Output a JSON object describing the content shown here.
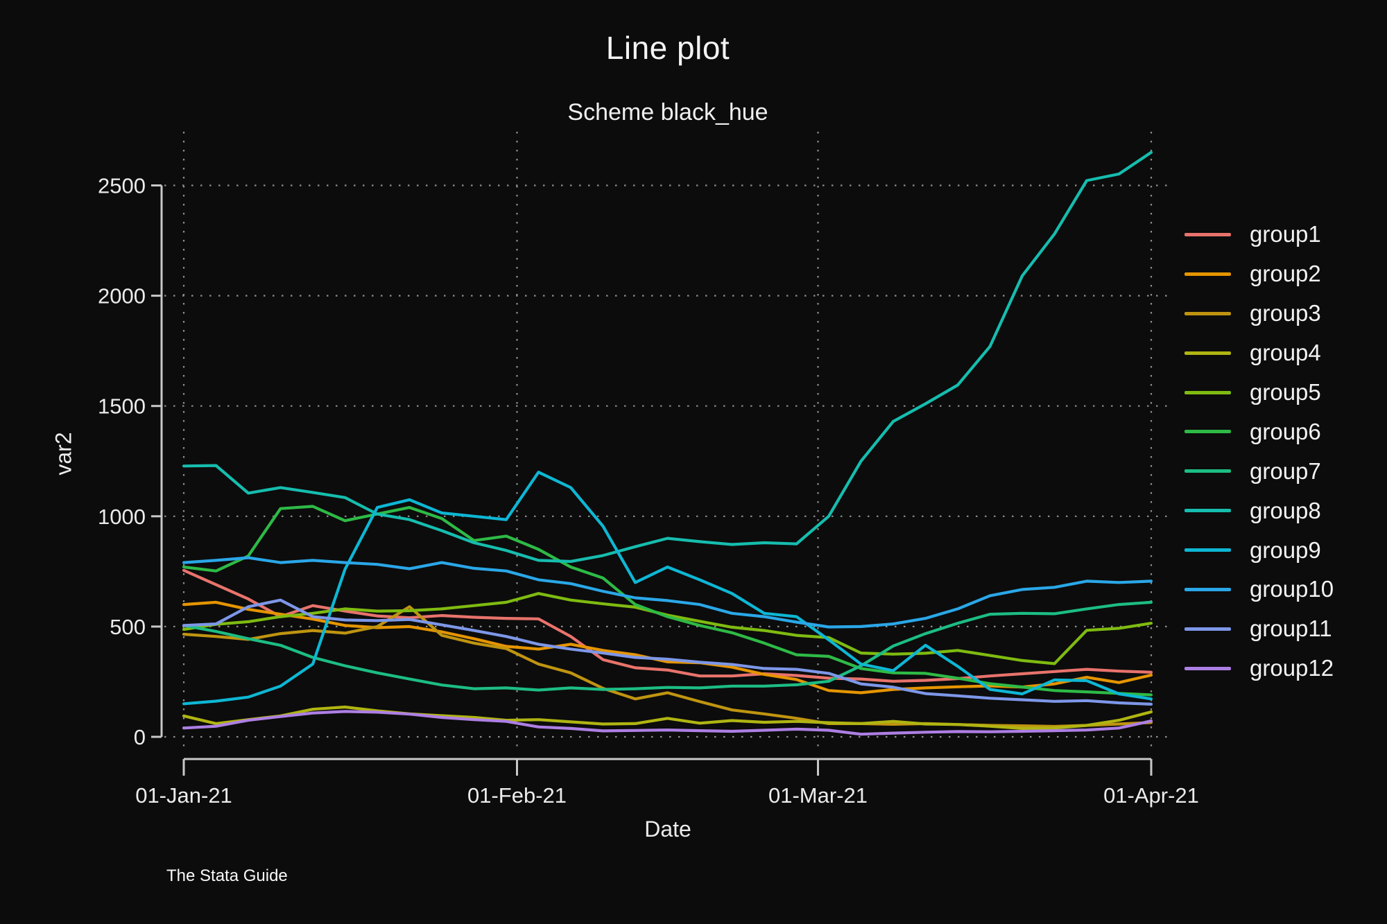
{
  "chart": {
    "title": "Line plot",
    "subtitle": "Scheme black_hue",
    "xlabel": "Date",
    "ylabel": "var2",
    "attribution": "The Stata Guide"
  },
  "chart_data": {
    "type": "line",
    "title": "Line plot",
    "subtitle": "Scheme black_hue",
    "xlabel": "Date",
    "ylabel": "var2",
    "attribution": "The Stata Guide",
    "x_unit": "days since 01-Jan-21",
    "x_step_days": 3,
    "x_ticks": [
      {
        "day": 0,
        "label": "01-Jan-21"
      },
      {
        "day": 31,
        "label": "01-Feb-21"
      },
      {
        "day": 59,
        "label": "01-Mar-21"
      },
      {
        "day": 90,
        "label": "01-Apr-21"
      }
    ],
    "y_ticks": [
      0,
      500,
      1000,
      1500,
      2000,
      2500
    ],
    "ylim": [
      0,
      2700
    ],
    "grid": true,
    "grid_style": "dotted",
    "legend_position": "right",
    "background_color": "#0c0c0c",
    "axis_color": "#c8c8c8",
    "grid_color": "#8f8f8f",
    "text_color": "#ececec",
    "series": [
      {
        "name": "group1",
        "color": "#e8736c",
        "values": [
          755,
          690,
          625,
          545,
          595,
          570,
          548,
          540,
          550,
          542,
          537,
          535,
          455,
          350,
          313,
          303,
          276,
          276,
          286,
          278,
          266,
          262,
          252,
          256,
          264,
          276,
          286,
          296,
          306,
          298,
          293
        ]
      },
      {
        "name": "group2",
        "color": "#e59500",
        "values": [
          600,
          610,
          578,
          556,
          534,
          505,
          495,
          500,
          476,
          445,
          410,
          398,
          420,
          392,
          372,
          340,
          336,
          316,
          283,
          260,
          210,
          200,
          215,
          222,
          227,
          231,
          226,
          240,
          270,
          246,
          280
        ]
      },
      {
        "name": "group3",
        "color": "#bf9410",
        "values": [
          465,
          455,
          442,
          468,
          482,
          470,
          500,
          590,
          460,
          425,
          400,
          330,
          290,
          220,
          172,
          200,
          160,
          122,
          104,
          84,
          60,
          60,
          57,
          60,
          56,
          52,
          50,
          47,
          52,
          58,
          65
        ]
      },
      {
        "name": "group4",
        "color": "#b0b512",
        "values": [
          95,
          60,
          78,
          95,
          125,
          135,
          118,
          104,
          96,
          88,
          75,
          78,
          68,
          58,
          60,
          84,
          62,
          74,
          66,
          70,
          64,
          60,
          70,
          58,
          56,
          48,
          38,
          40,
          52,
          75,
          113
        ]
      },
      {
        "name": "group5",
        "color": "#7fbb11",
        "values": [
          487,
          510,
          522,
          545,
          560,
          580,
          570,
          572,
          580,
          595,
          610,
          650,
          620,
          603,
          588,
          552,
          524,
          497,
          482,
          460,
          450,
          380,
          375,
          379,
          392,
          369,
          346,
          332,
          483,
          492,
          515
        ]
      },
      {
        "name": "group6",
        "color": "#2eba46",
        "values": [
          770,
          752,
          820,
          1035,
          1045,
          980,
          1010,
          1040,
          990,
          890,
          910,
          850,
          770,
          720,
          600,
          545,
          505,
          472,
          425,
          372,
          365,
          310,
          290,
          288,
          266,
          241,
          226,
          210,
          204,
          197,
          190
        ]
      },
      {
        "name": "group7",
        "color": "#1cbd83",
        "values": [
          505,
          478,
          445,
          415,
          360,
          322,
          290,
          262,
          235,
          218,
          222,
          212,
          222,
          215,
          218,
          224,
          222,
          230,
          230,
          236,
          252,
          322,
          412,
          468,
          515,
          556,
          560,
          558,
          580,
          600,
          610
        ]
      },
      {
        "name": "group8",
        "color": "#16bdae",
        "values": [
          1228,
          1230,
          1105,
          1130,
          1108,
          1085,
          1010,
          985,
          935,
          880,
          845,
          800,
          795,
          822,
          862,
          900,
          885,
          872,
          880,
          875,
          1000,
          1250,
          1430,
          1510,
          1595,
          1770,
          2090,
          2280,
          2522,
          2552,
          2650
        ]
      },
      {
        "name": "group9",
        "color": "#0db7d4",
        "values": [
          150,
          162,
          180,
          230,
          330,
          760,
          1040,
          1075,
          1015,
          1000,
          985,
          1200,
          1130,
          955,
          700,
          770,
          712,
          650,
          560,
          545,
          440,
          330,
          300,
          415,
          320,
          215,
          195,
          258,
          255,
          195,
          172
        ]
      },
      {
        "name": "group10",
        "color": "#2aa7e8",
        "values": [
          790,
          800,
          812,
          790,
          800,
          790,
          782,
          762,
          790,
          764,
          752,
          712,
          695,
          660,
          630,
          618,
          600,
          560,
          545,
          520,
          498,
          500,
          512,
          537,
          580,
          640,
          668,
          678,
          706,
          700,
          706
        ]
      },
      {
        "name": "group11",
        "color": "#7d97e8",
        "values": [
          505,
          512,
          590,
          620,
          545,
          530,
          527,
          532,
          508,
          482,
          455,
          420,
          398,
          380,
          360,
          352,
          338,
          328,
          310,
          306,
          288,
          240,
          225,
          196,
          186,
          175,
          168,
          161,
          164,
          154,
          148
        ]
      },
      {
        "name": "group12",
        "color": "#ad7fe4",
        "values": [
          40,
          48,
          75,
          92,
          108,
          115,
          112,
          103,
          88,
          78,
          70,
          45,
          38,
          27,
          29,
          31,
          28,
          25,
          30,
          35,
          30,
          12,
          17,
          21,
          24,
          23,
          25,
          28,
          31,
          40,
          72
        ]
      }
    ]
  }
}
